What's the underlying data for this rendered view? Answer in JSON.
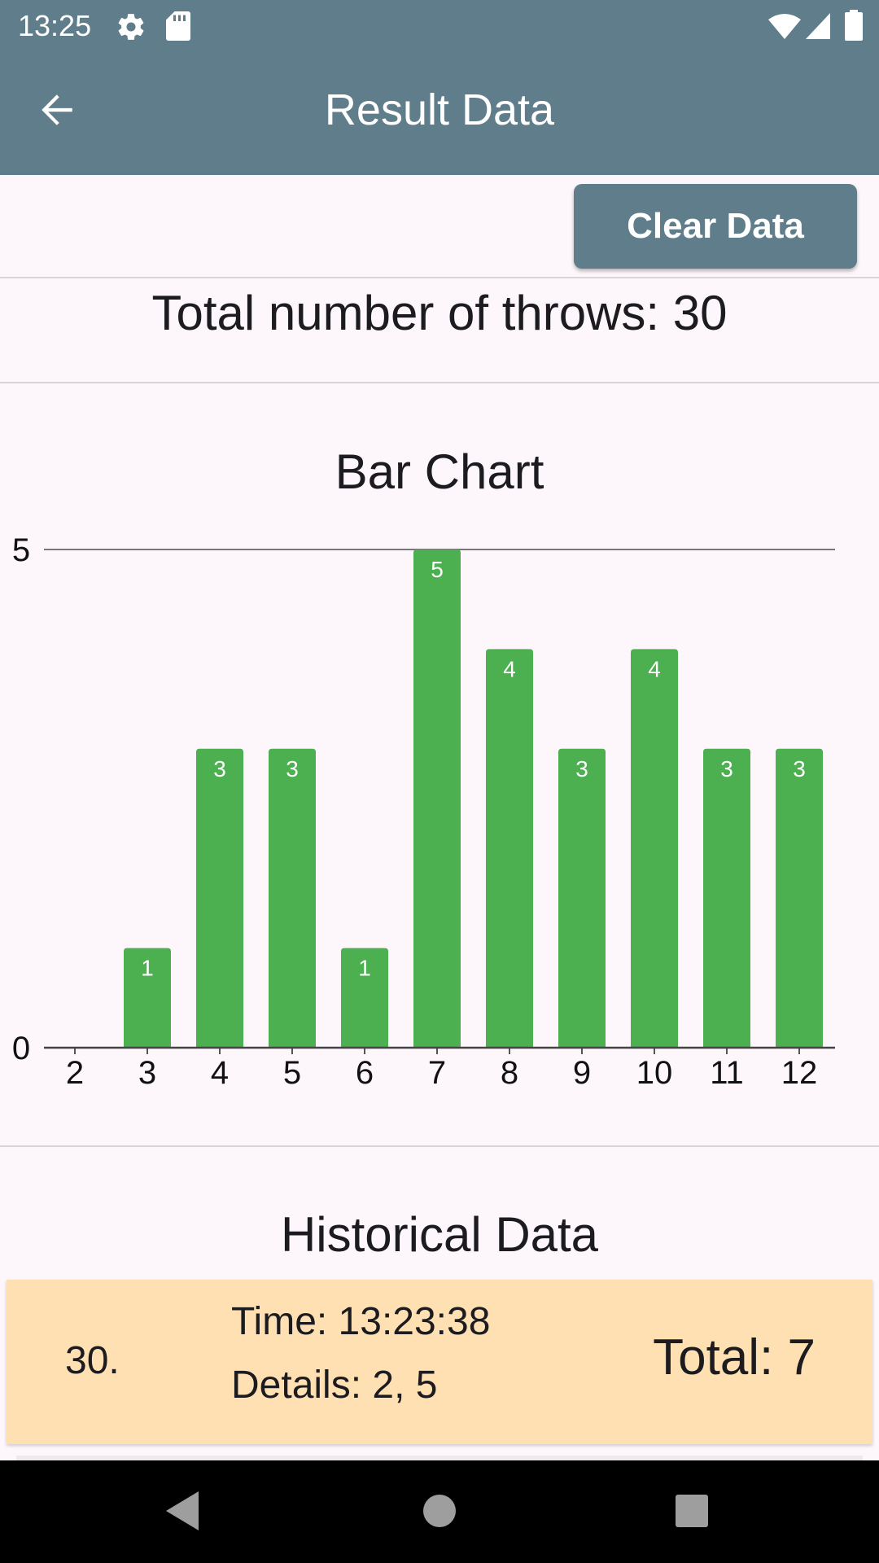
{
  "status_bar": {
    "time": "13:25",
    "icons": [
      "gear-icon",
      "sd-card-icon",
      "wifi-icon",
      "signal-icon",
      "battery-icon"
    ]
  },
  "app_bar": {
    "title": "Result Data",
    "back_icon": "arrow-back-icon"
  },
  "toolbar": {
    "clear_label": "Clear Data"
  },
  "summary": {
    "total_throws": "Total number of throws: 30"
  },
  "chart_section": {
    "title": "Bar Chart"
  },
  "chart_data": {
    "type": "bar",
    "title": "Bar Chart",
    "categories": [
      "2",
      "3",
      "4",
      "5",
      "6",
      "7",
      "8",
      "9",
      "10",
      "11",
      "12"
    ],
    "values": [
      0,
      1,
      3,
      3,
      1,
      5,
      4,
      3,
      4,
      3,
      3
    ],
    "ylim": [
      0,
      5
    ],
    "y_ticks": [
      "0",
      "5"
    ],
    "bar_color": "#4CAF50",
    "data_labels": true,
    "grid": false,
    "legend": "none"
  },
  "history": {
    "title": "Historical Data",
    "items": [
      {
        "index": "30.",
        "time": "Time: 13:23:38",
        "details": "Details: 2, 5",
        "total": "Total: 7"
      }
    ]
  },
  "colors": {
    "primary": "#607D8B",
    "bar": "#4CAF50",
    "card": "#FFE0B2",
    "background": "#FDF7FC"
  },
  "nav_bar": {
    "icons": [
      "back-triangle-icon",
      "home-circle-icon",
      "recents-square-icon"
    ]
  }
}
